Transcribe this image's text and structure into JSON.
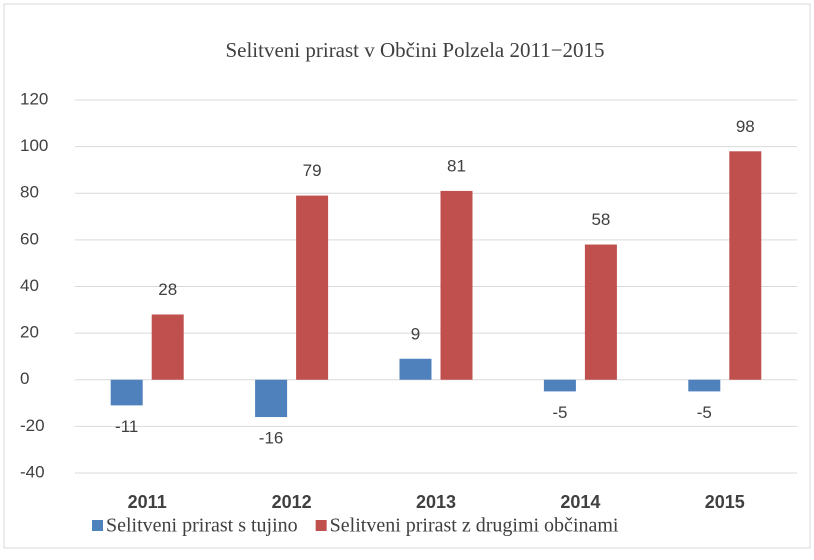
{
  "chart_data": {
    "type": "bar",
    "title": "Selitveni prirast v Občini Polzela 2011−2015",
    "categories": [
      "2011",
      "2012",
      "2013",
      "2014",
      "2015"
    ],
    "series": [
      {
        "name": "Selitveni prirast s tujino",
        "color": "#4f81bd",
        "values": [
          -11,
          -16,
          9,
          -5,
          -5
        ]
      },
      {
        "name": "Selitveni prirast z drugimi občinami",
        "color": "#c0504d",
        "values": [
          28,
          79,
          81,
          58,
          98
        ]
      }
    ],
    "ylim": [
      -40,
      120
    ],
    "yticks": [
      -40,
      -20,
      0,
      20,
      40,
      60,
      80,
      100,
      120
    ],
    "grid": true,
    "legend": "bottom"
  }
}
